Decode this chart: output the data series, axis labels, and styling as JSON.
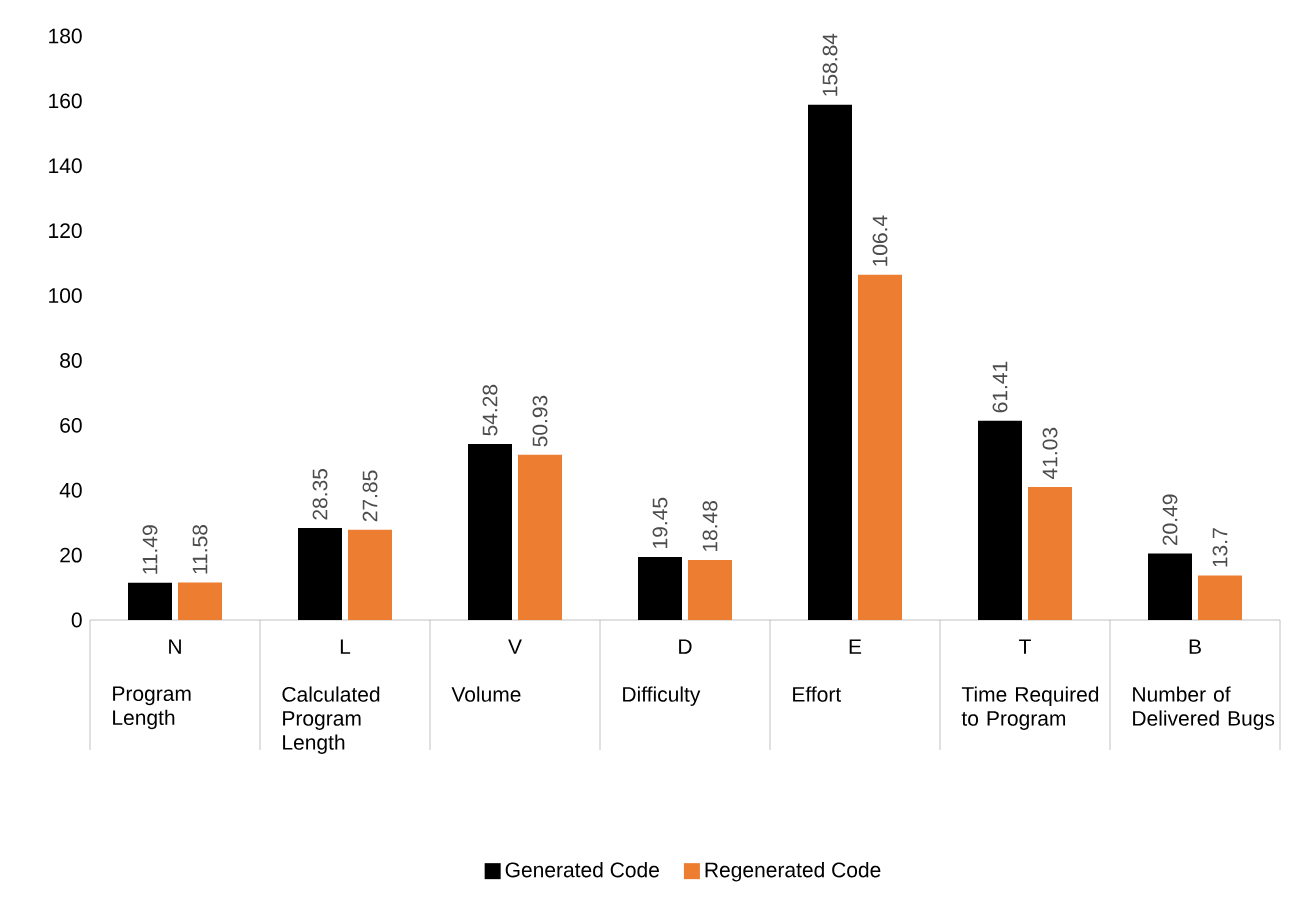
{
  "chart_data": {
    "type": "bar",
    "categories": [
      "N",
      "L",
      "V",
      "D",
      "E",
      "T",
      "B"
    ],
    "annotations": [
      "Program Length",
      "Calculated Program Length",
      "Volume",
      "Difficulty",
      "Effort",
      "Time Required to Program",
      "Number of Delivered Bugs"
    ],
    "series": [
      {
        "name": "Generated Code",
        "color": "#000000",
        "values": [
          11.49,
          28.35,
          54.28,
          19.45,
          158.84,
          61.41,
          20.49
        ]
      },
      {
        "name": "Regenerated Code",
        "color": "#ed7d31",
        "values": [
          11.58,
          27.85,
          50.93,
          18.48,
          106.4,
          41.03,
          13.7
        ]
      }
    ],
    "ylim": [
      0,
      180
    ],
    "yticks": [
      0,
      20,
      40,
      60,
      80,
      100,
      120,
      140,
      160,
      180
    ],
    "data_labels": true,
    "legend": "bottom"
  }
}
